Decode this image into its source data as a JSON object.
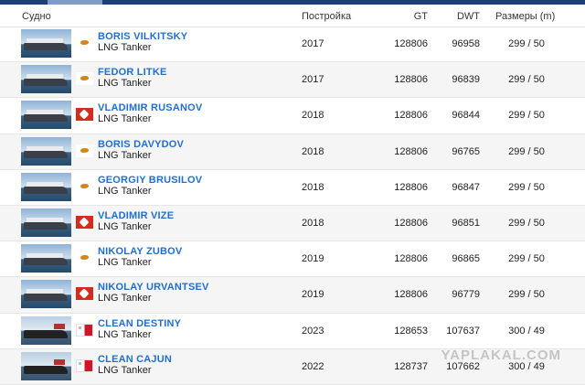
{
  "header": {
    "vessel": "Судно",
    "built": "Постройка",
    "gt": "GT",
    "dwt": "DWT",
    "size": "Размеры (m)"
  },
  "colors": {
    "accent": "#1f3f6e",
    "link": "#1f6fd1",
    "row_alt": "#f5f5f5"
  },
  "rows": [
    {
      "name": "BORIS VILKITSKY",
      "type": "LNG Tanker",
      "flag": "cyprus-flag-icon",
      "built": "2017",
      "gt": "128806",
      "dwt": "96958",
      "size": "299 / 50"
    },
    {
      "name": "FEDOR LITKE",
      "type": "LNG Tanker",
      "flag": "cyprus-flag-icon",
      "built": "2017",
      "gt": "128806",
      "dwt": "96839",
      "size": "299 / 50"
    },
    {
      "name": "VLADIMIR RUSANOV",
      "type": "LNG Tanker",
      "flag": "hong-kong-flag-icon",
      "built": "2018",
      "gt": "128806",
      "dwt": "96844",
      "size": "299 / 50"
    },
    {
      "name": "BORIS DAVYDOV",
      "type": "LNG Tanker",
      "flag": "cyprus-flag-icon",
      "built": "2018",
      "gt": "128806",
      "dwt": "96765",
      "size": "299 / 50"
    },
    {
      "name": "GEORGIY BRUSILOV",
      "type": "LNG Tanker",
      "flag": "cyprus-flag-icon",
      "built": "2018",
      "gt": "128806",
      "dwt": "96847",
      "size": "299 / 50"
    },
    {
      "name": "VLADIMIR VIZE",
      "type": "LNG Tanker",
      "flag": "hong-kong-flag-icon",
      "built": "2018",
      "gt": "128806",
      "dwt": "96851",
      "size": "299 / 50"
    },
    {
      "name": "NIKOLAY ZUBOV",
      "type": "LNG Tanker",
      "flag": "cyprus-flag-icon",
      "built": "2019",
      "gt": "128806",
      "dwt": "96865",
      "size": "299 / 50"
    },
    {
      "name": "NIKOLAY URVANTSEV",
      "type": "LNG Tanker",
      "flag": "hong-kong-flag-icon",
      "built": "2019",
      "gt": "128806",
      "dwt": "96779",
      "size": "299 / 50"
    },
    {
      "name": "CLEAN DESTINY",
      "type": "LNG Tanker",
      "flag": "malta-flag-icon",
      "built": "2023",
      "gt": "128653",
      "dwt": "107637",
      "size": "300 / 49"
    },
    {
      "name": "CLEAN CAJUN",
      "type": "LNG Tanker",
      "flag": "malta-flag-icon",
      "built": "2022",
      "gt": "128737",
      "dwt": "107662",
      "size": "300 / 49"
    }
  ],
  "watermark": "YAPLAKAL.COM"
}
